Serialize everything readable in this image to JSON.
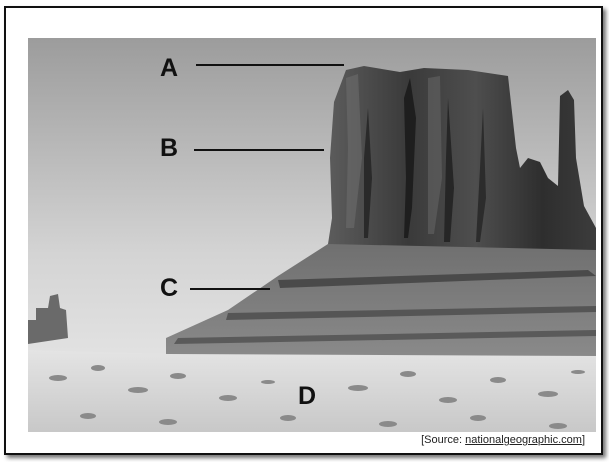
{
  "figure": {
    "labels": [
      "A",
      "B",
      "C",
      "D"
    ],
    "source": {
      "prefix": "[Source: ",
      "link": "nationalgeographic.com",
      "suffix": "]"
    }
  }
}
